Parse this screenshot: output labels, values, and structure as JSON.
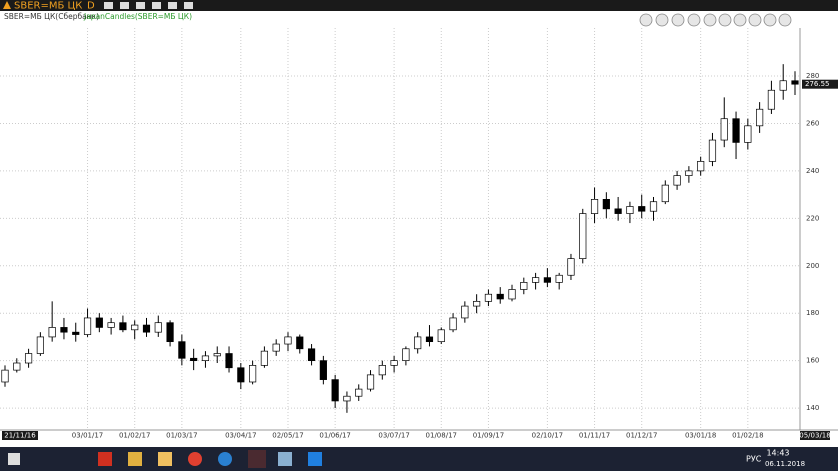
{
  "toolbar": {
    "symbol": "SBER=МБ ЦК",
    "interval": "D"
  },
  "chart_data": {
    "type": "candlestick",
    "title": "SBER=МБ ЦК(Сбербанк)",
    "subtitle": "JapanCandles(SBER=МБ ЦК)",
    "categories": [
      "21/11/16",
      null,
      null,
      null,
      null,
      null,
      null,
      "03/01/17",
      null,
      null,
      null,
      "01/02/17",
      null,
      null,
      null,
      "01/03/17",
      null,
      null,
      null,
      null,
      "03/04/17",
      null,
      null,
      null,
      "02/05/17",
      null,
      null,
      null,
      "01/06/17",
      null,
      null,
      null,
      null,
      "03/07/17",
      null,
      null,
      null,
      "01/08/17",
      null,
      null,
      null,
      "01/09/17",
      null,
      null,
      null,
      null,
      "02/10/17",
      null,
      null,
      null,
      "01/11/17",
      null,
      null,
      null,
      "01/12/17",
      null,
      null,
      null,
      null,
      "03/01/18",
      null,
      null,
      null,
      "01/02/18",
      null,
      null,
      null,
      "05/03/18"
    ],
    "open": [
      151,
      156,
      159,
      163,
      170,
      174,
      172,
      171,
      178,
      174,
      176,
      173,
      175,
      172,
      176,
      168,
      161,
      160,
      162,
      163,
      157,
      151,
      158,
      164,
      167,
      170,
      165,
      160,
      152,
      143,
      145,
      148,
      154,
      158,
      160,
      165,
      170,
      168,
      173,
      178,
      183,
      185,
      188,
      186,
      190,
      193,
      195,
      193,
      196,
      203,
      222,
      228,
      224,
      222,
      225,
      223,
      227,
      234,
      238,
      240,
      244,
      253,
      262,
      252,
      259,
      266,
      274,
      278
    ],
    "high": [
      158,
      161,
      165,
      172,
      185,
      178,
      176,
      182,
      180,
      178,
      179,
      177,
      178,
      179,
      177,
      171,
      165,
      164,
      166,
      166,
      159,
      160,
      166,
      169,
      172,
      171,
      167,
      162,
      154,
      147,
      150,
      156,
      160,
      162,
      166,
      172,
      175,
      174,
      180,
      185,
      188,
      190,
      191,
      192,
      195,
      197,
      199,
      197,
      205,
      224,
      233,
      231,
      229,
      227,
      230,
      229,
      236,
      240,
      242,
      246,
      256,
      271,
      265,
      262,
      269,
      278,
      285,
      282
    ],
    "low": [
      149,
      155,
      157,
      162,
      168,
      169,
      168,
      170,
      172,
      171,
      172,
      169,
      170,
      170,
      166,
      158,
      156,
      157,
      159,
      155,
      148,
      150,
      157,
      162,
      164,
      163,
      158,
      150,
      140,
      138,
      143,
      147,
      152,
      155,
      158,
      163,
      166,
      167,
      172,
      176,
      180,
      183,
      184,
      185,
      188,
      190,
      191,
      190,
      194,
      201,
      218,
      220,
      219,
      218,
      220,
      219,
      226,
      232,
      235,
      238,
      242,
      250,
      245,
      249,
      256,
      264,
      270,
      272
    ],
    "close": [
      156,
      159,
      163,
      170,
      174,
      172,
      171,
      178,
      174,
      176,
      173,
      175,
      172,
      176,
      168,
      161,
      160,
      162,
      163,
      157,
      151,
      158,
      164,
      167,
      170,
      165,
      160,
      152,
      143,
      145,
      148,
      154,
      158,
      160,
      165,
      170,
      168,
      173,
      178,
      183,
      185,
      188,
      186,
      190,
      193,
      195,
      193,
      196,
      203,
      222,
      228,
      224,
      222,
      225,
      223,
      227,
      234,
      238,
      240,
      244,
      253,
      262,
      252,
      259,
      266,
      274,
      278,
      276.55
    ],
    "last_price": 276.55,
    "ylim": [
      131.6,
      299.4
    ],
    "yticks": [
      140,
      160,
      180,
      200,
      220,
      240,
      260,
      280
    ],
    "grid": true,
    "up_color": "#ffffff",
    "down_color": "#000000"
  },
  "taskbar": {
    "language": "РУС",
    "time": "14:43",
    "date": "06.11.2018"
  }
}
